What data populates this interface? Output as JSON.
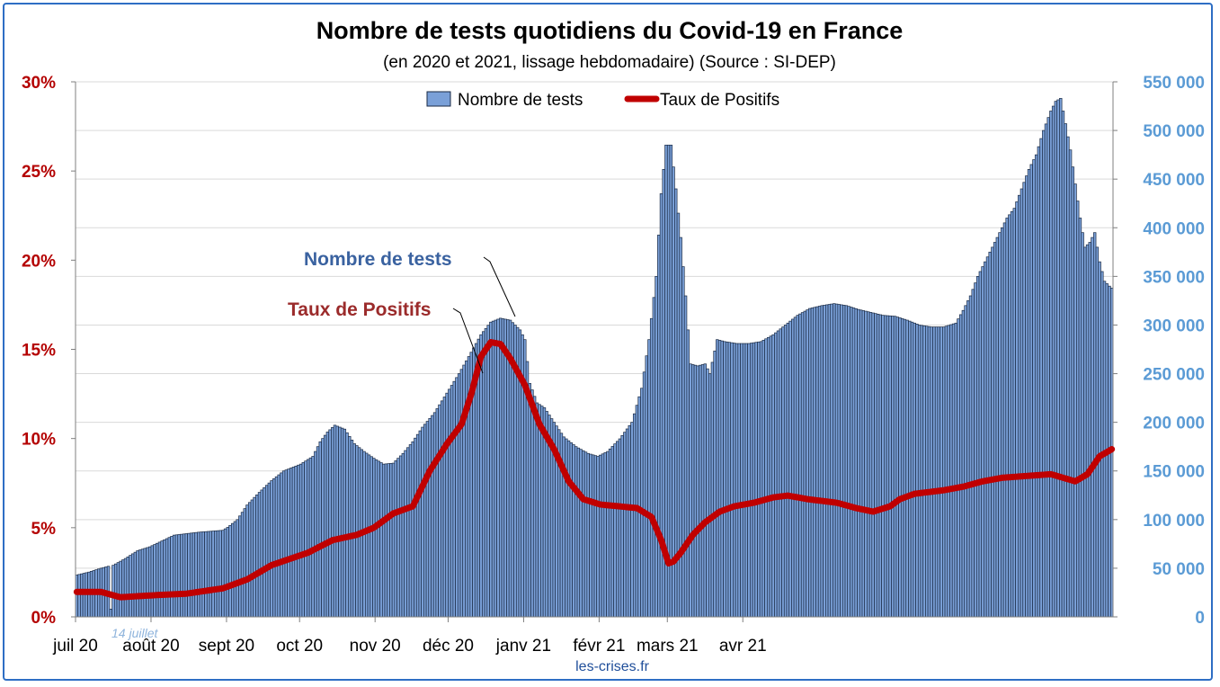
{
  "chart_data": {
    "type": "bar",
    "title": "Nombre de tests quotidiens du Covid-19 en France",
    "subtitle": "(en 2020 et 2021, lissage hebdomadaire) (Source : SI-DEP)",
    "legend": {
      "placement": "top-center",
      "bar_label": "Nombre de tests",
      "line_label": "Taux de Positifs"
    },
    "x_months": [
      "juil 20",
      "août 20",
      "sept 20",
      "oct 20",
      "nov 20",
      "déc 20",
      "janv 21",
      "févr 21",
      "mars 21",
      "avr 21"
    ],
    "y_left": {
      "ticks": [
        "0%",
        "5%",
        "10%",
        "15%",
        "20%",
        "25%",
        "30%"
      ],
      "ylim": [
        0,
        30
      ],
      "color": "#b40000"
    },
    "y_right": {
      "ticks": [
        "0",
        "50 000",
        "100 000",
        "150 000",
        "200 000",
        "250 000",
        "300 000",
        "350 000",
        "400 000",
        "450 000",
        "500 000",
        "550 000"
      ],
      "ylim": [
        0,
        550000
      ],
      "color": "#5b9bd5"
    },
    "grid": true,
    "series": [
      {
        "name": "Nombre de tests",
        "kind": "bar",
        "axis": "right",
        "color": "#7aa0d8",
        "start": "2020-07-01",
        "interval": "daily",
        "values": [
          [
            0,
            43000
          ],
          [
            5,
            46000
          ],
          [
            10,
            50000
          ],
          [
            13,
            52000
          ],
          [
            14,
            8000
          ],
          [
            15,
            53000
          ],
          [
            20,
            60000
          ],
          [
            25,
            68000
          ],
          [
            30,
            72000
          ],
          [
            35,
            78000
          ],
          [
            40,
            84000
          ],
          [
            50,
            87000
          ],
          [
            60,
            89000
          ],
          [
            62,
            92000
          ],
          [
            66,
            100000
          ],
          [
            70,
            115000
          ],
          [
            75,
            128000
          ],
          [
            80,
            140000
          ],
          [
            85,
            150000
          ],
          [
            92,
            157000
          ],
          [
            97,
            165000
          ],
          [
            100,
            180000
          ],
          [
            103,
            190000
          ],
          [
            106,
            197000
          ],
          [
            110,
            193000
          ],
          [
            114,
            178000
          ],
          [
            118,
            170000
          ],
          [
            122,
            163000
          ],
          [
            126,
            157000
          ],
          [
            130,
            158000
          ],
          [
            134,
            168000
          ],
          [
            138,
            180000
          ],
          [
            142,
            195000
          ],
          [
            147,
            210000
          ],
          [
            152,
            230000
          ],
          [
            157,
            250000
          ],
          [
            162,
            272000
          ],
          [
            166,
            290000
          ],
          [
            170,
            303000
          ],
          [
            174,
            307000
          ],
          [
            178,
            305000
          ],
          [
            182,
            295000
          ],
          [
            184,
            285000
          ],
          [
            186,
            240000
          ],
          [
            189,
            220000
          ],
          [
            192,
            215000
          ],
          [
            196,
            200000
          ],
          [
            200,
            185000
          ],
          [
            205,
            175000
          ],
          [
            210,
            168000
          ],
          [
            214,
            165000
          ],
          [
            218,
            170000
          ],
          [
            223,
            183000
          ],
          [
            228,
            200000
          ],
          [
            232,
            235000
          ],
          [
            235,
            285000
          ],
          [
            238,
            350000
          ],
          [
            240,
            435000
          ],
          [
            242,
            485000
          ],
          [
            244,
            485000
          ],
          [
            246,
            440000
          ],
          [
            248,
            390000
          ],
          [
            250,
            330000
          ],
          [
            252,
            260000
          ],
          [
            255,
            258000
          ],
          [
            258,
            260000
          ],
          [
            260,
            250000
          ],
          [
            263,
            285000
          ],
          [
            266,
            283000
          ],
          [
            271,
            281000
          ],
          [
            276,
            281000
          ],
          [
            281,
            283000
          ],
          [
            286,
            290000
          ],
          [
            291,
            300000
          ],
          [
            296,
            310000
          ],
          [
            301,
            317000
          ],
          [
            306,
            320000
          ],
          [
            311,
            322000
          ],
          [
            316,
            320000
          ],
          [
            321,
            316000
          ],
          [
            326,
            313000
          ],
          [
            331,
            310000
          ],
          [
            336,
            309000
          ],
          [
            341,
            305000
          ],
          [
            346,
            300000
          ],
          [
            351,
            298000
          ],
          [
            356,
            298000
          ],
          [
            361,
            302000
          ],
          [
            364,
            315000
          ],
          [
            367,
            330000
          ],
          [
            370,
            350000
          ],
          [
            373,
            365000
          ],
          [
            376,
            380000
          ],
          [
            379,
            395000
          ],
          [
            382,
            410000
          ],
          [
            385,
            420000
          ],
          [
            388,
            440000
          ],
          [
            391,
            460000
          ],
          [
            394,
            475000
          ],
          [
            397,
            500000
          ],
          [
            400,
            520000
          ],
          [
            402,
            530000
          ],
          [
            404,
            533000
          ],
          [
            406,
            507000
          ],
          [
            408,
            480000
          ],
          [
            410,
            445000
          ],
          [
            412,
            410000
          ],
          [
            414,
            380000
          ],
          [
            416,
            385000
          ],
          [
            418,
            395000
          ],
          [
            420,
            365000
          ],
          [
            422,
            345000
          ],
          [
            424,
            340000
          ],
          [
            425,
            338000
          ]
        ]
      },
      {
        "name": "Taux de Positifs",
        "kind": "line",
        "axis": "left",
        "color": "#c00000",
        "start": "2020-07-01",
        "interval": "daily",
        "values": [
          [
            0,
            1.4
          ],
          [
            10,
            1.4
          ],
          [
            18,
            1.1
          ],
          [
            30,
            1.2
          ],
          [
            45,
            1.3
          ],
          [
            60,
            1.6
          ],
          [
            70,
            2.1
          ],
          [
            80,
            2.9
          ],
          [
            95,
            3.6
          ],
          [
            105,
            4.3
          ],
          [
            115,
            4.6
          ],
          [
            122,
            5.0
          ],
          [
            130,
            5.8
          ],
          [
            138,
            6.2
          ],
          [
            145,
            8.2
          ],
          [
            152,
            9.7
          ],
          [
            158,
            10.8
          ],
          [
            162,
            12.5
          ],
          [
            166,
            14.6
          ],
          [
            170,
            15.4
          ],
          [
            174,
            15.3
          ],
          [
            178,
            14.5
          ],
          [
            184,
            13.0
          ],
          [
            190,
            10.8
          ],
          [
            196,
            9.4
          ],
          [
            202,
            7.6
          ],
          [
            208,
            6.6
          ],
          [
            215,
            6.3
          ],
          [
            230,
            6.1
          ],
          [
            236,
            5.6
          ],
          [
            240,
            4.3
          ],
          [
            243,
            3.0
          ],
          [
            245,
            3.1
          ],
          [
            248,
            3.6
          ],
          [
            253,
            4.6
          ],
          [
            258,
            5.3
          ],
          [
            264,
            5.9
          ],
          [
            270,
            6.2
          ],
          [
            278,
            6.4
          ],
          [
            286,
            6.7
          ],
          [
            292,
            6.8
          ],
          [
            300,
            6.6
          ],
          [
            312,
            6.4
          ],
          [
            320,
            6.1
          ],
          [
            327,
            5.9
          ],
          [
            334,
            6.2
          ],
          [
            338,
            6.6
          ],
          [
            344,
            6.9
          ],
          [
            356,
            7.1
          ],
          [
            364,
            7.3
          ],
          [
            372,
            7.6
          ],
          [
            380,
            7.8
          ],
          [
            390,
            7.9
          ],
          [
            400,
            8.0
          ],
          [
            405,
            7.8
          ],
          [
            410,
            7.6
          ],
          [
            415,
            8.0
          ],
          [
            420,
            9.0
          ],
          [
            425,
            9.4
          ]
        ]
      }
    ],
    "annotations": [
      {
        "text": "Nombre de tests",
        "target": "Nombre de tests"
      },
      {
        "text": "Taux de Positifs",
        "target": "Taux de Positifs"
      },
      {
        "text": "14 juillet"
      }
    ]
  },
  "footer": {
    "source_text": "les-crises.fr"
  }
}
